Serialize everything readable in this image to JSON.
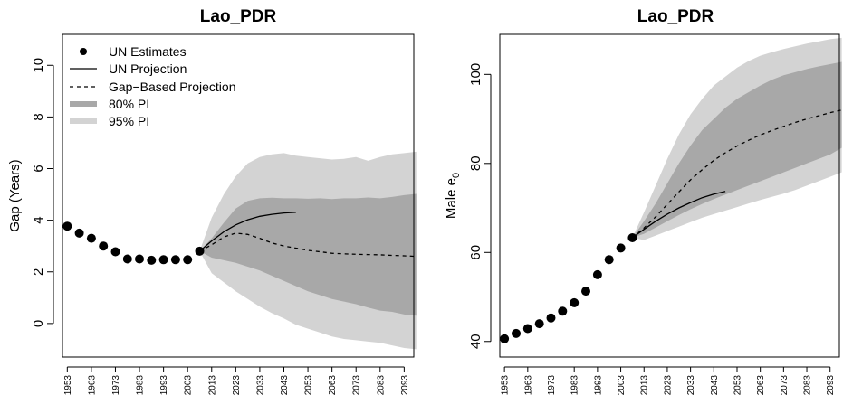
{
  "chart_data": [
    {
      "type": "line",
      "title": "Lao_PDR",
      "xlabel": "",
      "ylabel": "Gap (Years)",
      "ylim": [
        -1.3,
        11.2
      ],
      "xlim": [
        1951,
        2097
      ],
      "yticks": [
        0,
        2,
        4,
        6,
        8,
        10
      ],
      "xticks": [
        1953,
        1963,
        1973,
        1983,
        1993,
        2003,
        2013,
        2023,
        2033,
        2043,
        2053,
        2063,
        2073,
        2083,
        2093
      ],
      "legend": {
        "placement": "top-left",
        "entries": [
          "UN Estimates",
          "UN Projection",
          "Gap−Based Projection",
          "80% PI",
          "95% PI"
        ]
      },
      "colors": {
        "pi80": "#a8a8a8",
        "pi95": "#d3d3d3",
        "line": "#000000"
      },
      "series": [
        {
          "name": "UN Estimates",
          "kind": "points",
          "x": [
            1953,
            1958,
            1963,
            1968,
            1973,
            1978,
            1983,
            1988,
            1993,
            1998,
            2003,
            2008
          ],
          "y": [
            3.77,
            3.5,
            3.3,
            3.0,
            2.78,
            2.5,
            2.5,
            2.45,
            2.47,
            2.47,
            2.47,
            2.8
          ]
        },
        {
          "name": "UN Projection",
          "kind": "solid",
          "x": [
            2008,
            2013,
            2018,
            2023,
            2028,
            2033,
            2038,
            2043,
            2048
          ],
          "y": [
            2.8,
            3.2,
            3.55,
            3.82,
            4.02,
            4.15,
            4.23,
            4.28,
            4.31
          ]
        },
        {
          "name": "Gap−Based Projection",
          "kind": "dashed",
          "x": [
            2008,
            2013,
            2018,
            2023,
            2028,
            2033,
            2038,
            2043,
            2048,
            2053,
            2058,
            2063,
            2068,
            2073,
            2078,
            2083,
            2088,
            2093,
            2098
          ],
          "y": [
            2.8,
            3.05,
            3.35,
            3.5,
            3.45,
            3.3,
            3.12,
            3.0,
            2.92,
            2.83,
            2.78,
            2.72,
            2.7,
            2.68,
            2.67,
            2.66,
            2.64,
            2.62,
            2.6
          ]
        },
        {
          "name": "80% PI",
          "kind": "band",
          "x": [
            2008,
            2013,
            2018,
            2023,
            2028,
            2033,
            2038,
            2043,
            2048,
            2053,
            2058,
            2063,
            2068,
            2073,
            2078,
            2083,
            2088,
            2093,
            2098
          ],
          "lower": [
            2.8,
            2.55,
            2.45,
            2.35,
            2.2,
            2.05,
            1.85,
            1.65,
            1.45,
            1.25,
            1.1,
            0.95,
            0.85,
            0.75,
            0.62,
            0.5,
            0.45,
            0.35,
            0.3
          ],
          "upper": [
            2.8,
            3.3,
            3.9,
            4.45,
            4.75,
            4.85,
            4.87,
            4.85,
            4.85,
            4.83,
            4.85,
            4.82,
            4.85,
            4.85,
            4.88,
            4.85,
            4.9,
            4.97,
            5.02
          ]
        },
        {
          "name": "95% PI",
          "kind": "band",
          "x": [
            2008,
            2013,
            2018,
            2023,
            2028,
            2033,
            2038,
            2043,
            2048,
            2053,
            2058,
            2063,
            2068,
            2073,
            2078,
            2083,
            2088,
            2093,
            2098
          ],
          "lower": [
            2.8,
            1.95,
            1.6,
            1.25,
            0.95,
            0.65,
            0.4,
            0.2,
            -0.05,
            -0.2,
            -0.35,
            -0.5,
            -0.6,
            -0.65,
            -0.7,
            -0.75,
            -0.85,
            -0.95,
            -1.0
          ],
          "upper": [
            2.8,
            4.1,
            5.0,
            5.7,
            6.2,
            6.45,
            6.55,
            6.6,
            6.5,
            6.45,
            6.4,
            6.35,
            6.38,
            6.45,
            6.3,
            6.45,
            6.55,
            6.6,
            6.65
          ]
        }
      ]
    },
    {
      "type": "line",
      "title": "Lao_PDR",
      "xlabel": "",
      "ylabel": "Male e",
      "ylabel_sub": "0",
      "ylim": [
        36.5,
        109
      ],
      "xlim": [
        1951,
        2097
      ],
      "yticks": [
        40,
        60,
        80,
        100
      ],
      "xticks": [
        1953,
        1963,
        1973,
        1983,
        1993,
        2003,
        2013,
        2023,
        2033,
        2043,
        2053,
        2063,
        2073,
        2083,
        2093
      ],
      "legend": null,
      "colors": {
        "pi80": "#a8a8a8",
        "pi95": "#d3d3d3",
        "line": "#000000"
      },
      "series": [
        {
          "name": "UN Estimates",
          "kind": "points",
          "x": [
            1953,
            1958,
            1963,
            1968,
            1973,
            1978,
            1983,
            1988,
            1993,
            1998,
            2003,
            2008
          ],
          "y": [
            40.6,
            41.8,
            42.9,
            44.0,
            45.3,
            46.8,
            48.7,
            51.3,
            55.0,
            58.4,
            61.0,
            63.3
          ]
        },
        {
          "name": "UN Projection",
          "kind": "solid",
          "x": [
            2008,
            2013,
            2018,
            2023,
            2028,
            2033,
            2038,
            2043,
            2048
          ],
          "y": [
            63.3,
            65.2,
            67.0,
            68.6,
            70.0,
            71.2,
            72.3,
            73.1,
            73.7
          ]
        },
        {
          "name": "Gap−Based Projection",
          "kind": "dashed",
          "x": [
            2008,
            2013,
            2018,
            2023,
            2028,
            2033,
            2038,
            2043,
            2048,
            2053,
            2058,
            2063,
            2068,
            2073,
            2078,
            2083,
            2088,
            2093,
            2098
          ],
          "y": [
            63.3,
            65.5,
            68.0,
            70.8,
            73.6,
            76.3,
            78.6,
            80.7,
            82.4,
            83.9,
            85.2,
            86.4,
            87.4,
            88.3,
            89.2,
            90.0,
            90.7,
            91.4,
            92.0
          ]
        },
        {
          "name": "80% PI",
          "kind": "band",
          "x": [
            2008,
            2013,
            2018,
            2023,
            2028,
            2033,
            2038,
            2043,
            2048,
            2053,
            2058,
            2063,
            2068,
            2073,
            2078,
            2083,
            2088,
            2093,
            2098
          ],
          "lower": [
            63.3,
            64.2,
            65.6,
            67.0,
            68.4,
            69.7,
            70.9,
            72.0,
            73.0,
            74.0,
            75.0,
            76.0,
            77.0,
            78.0,
            79.0,
            80.0,
            81.0,
            82.0,
            83.5
          ],
          "upper": [
            63.3,
            67.0,
            71.0,
            75.5,
            80.0,
            84.0,
            87.5,
            90.0,
            92.5,
            94.5,
            96.0,
            97.5,
            98.8,
            99.8,
            100.5,
            101.2,
            101.8,
            102.3,
            102.8
          ]
        },
        {
          "name": "95% PI",
          "kind": "band",
          "x": [
            2008,
            2013,
            2018,
            2023,
            2028,
            2033,
            2038,
            2043,
            2048,
            2053,
            2058,
            2063,
            2068,
            2073,
            2078,
            2083,
            2088,
            2093,
            2098
          ],
          "lower": [
            63.3,
            62.8,
            63.8,
            64.8,
            65.8,
            66.8,
            67.8,
            68.6,
            69.4,
            70.2,
            71.0,
            71.8,
            72.5,
            73.2,
            74.0,
            75.0,
            76.0,
            77.0,
            78.0
          ],
          "upper": [
            63.3,
            69.0,
            75.0,
            81.0,
            86.5,
            91.0,
            94.5,
            97.5,
            99.5,
            101.5,
            103.0,
            104.2,
            105.0,
            105.7,
            106.3,
            106.9,
            107.4,
            107.9,
            108.2
          ]
        }
      ]
    }
  ]
}
